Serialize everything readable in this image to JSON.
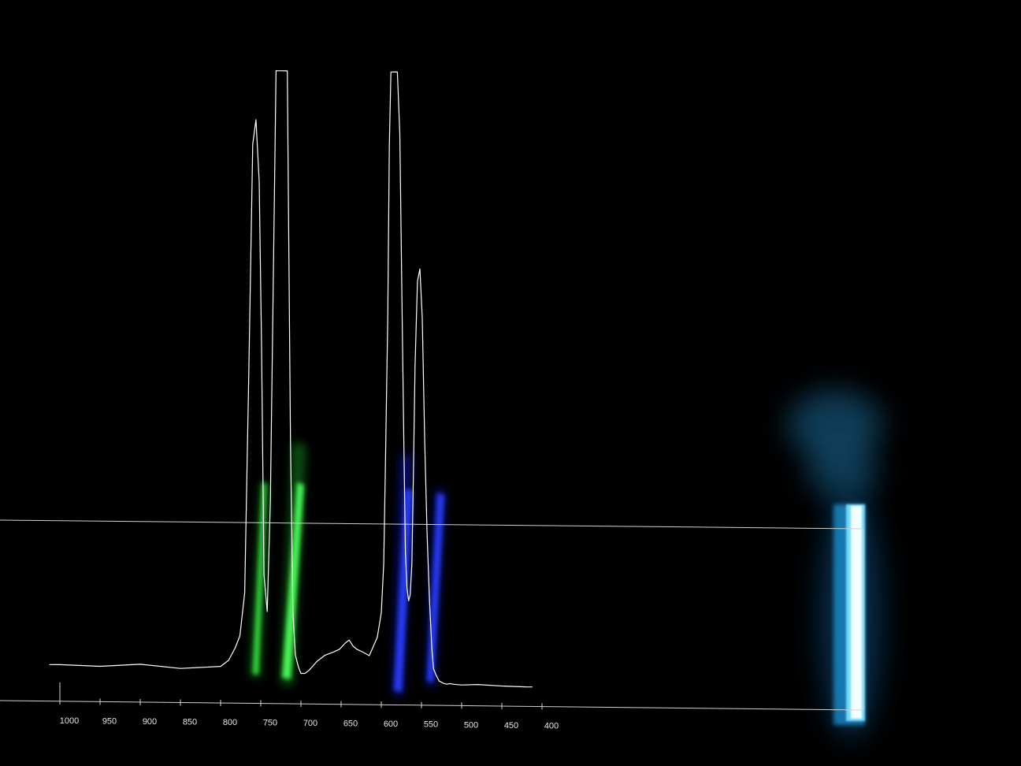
{
  "colors": {
    "background": "#000000",
    "trace": "#ffffff",
    "axis": "#d9d9d9",
    "green_line": "#2ee838",
    "blue_line": "#1a2cff",
    "cyan_line": "#38c8ff"
  },
  "chart_data": {
    "type": "line",
    "title": "",
    "xlabel": "",
    "ylabel": "",
    "x_direction": "descending",
    "xlim": [
      1000,
      400
    ],
    "ylim": [
      0,
      100
    ],
    "grid": false,
    "legend": "none",
    "x_ticks": [
      1000,
      950,
      900,
      850,
      800,
      750,
      700,
      650,
      600,
      550,
      500,
      450,
      400
    ],
    "x_tick_labels": [
      "1000",
      "950",
      "900",
      "850",
      "800",
      "750",
      "700",
      "650",
      "600",
      "550",
      "500",
      "450",
      "400"
    ],
    "series": [
      {
        "x": [
          1013,
          1000,
          950,
          900,
          850,
          800,
          790,
          782,
          776,
          770,
          765,
          760,
          756,
          752,
          749,
          746,
          742,
          738,
          735,
          731,
          728,
          725,
          721,
          717,
          713,
          710,
          707,
          703,
          700,
          695,
          690,
          680,
          670,
          660,
          652,
          645,
          640,
          635,
          630,
          622,
          615,
          610,
          605,
          600,
          597,
          595,
          592,
          590,
          588,
          586,
          584,
          582,
          580,
          577,
          574,
          572,
          570,
          568,
          566,
          564,
          562,
          560,
          558,
          555,
          552,
          549,
          546,
          543,
          540,
          537,
          535,
          532,
          530,
          528,
          525,
          522,
          518,
          515,
          510,
          500,
          480,
          450,
          420,
          412
        ],
        "y": [
          3,
          3,
          2.8,
          3.2,
          2.6,
          3,
          4,
          6,
          8,
          15,
          50,
          88,
          92,
          82,
          55,
          18,
          12,
          30,
          60,
          100,
          100,
          100,
          100,
          100,
          40,
          12,
          5,
          3,
          2,
          2,
          2.5,
          4,
          5,
          5.5,
          6,
          7,
          7.5,
          6.5,
          6,
          5.5,
          5,
          6.5,
          8,
          12,
          20,
          35,
          60,
          88,
          100,
          100,
          100,
          100,
          100,
          90,
          60,
          40,
          22,
          16,
          14,
          15,
          20,
          35,
          52,
          66,
          68,
          60,
          40,
          25,
          14,
          6,
          3,
          2,
          1.5,
          1,
          0.8,
          0.6,
          0.5,
          0.6,
          0.5,
          0.4,
          0.5,
          0.3,
          0.2,
          0.2
        ]
      }
    ]
  }
}
